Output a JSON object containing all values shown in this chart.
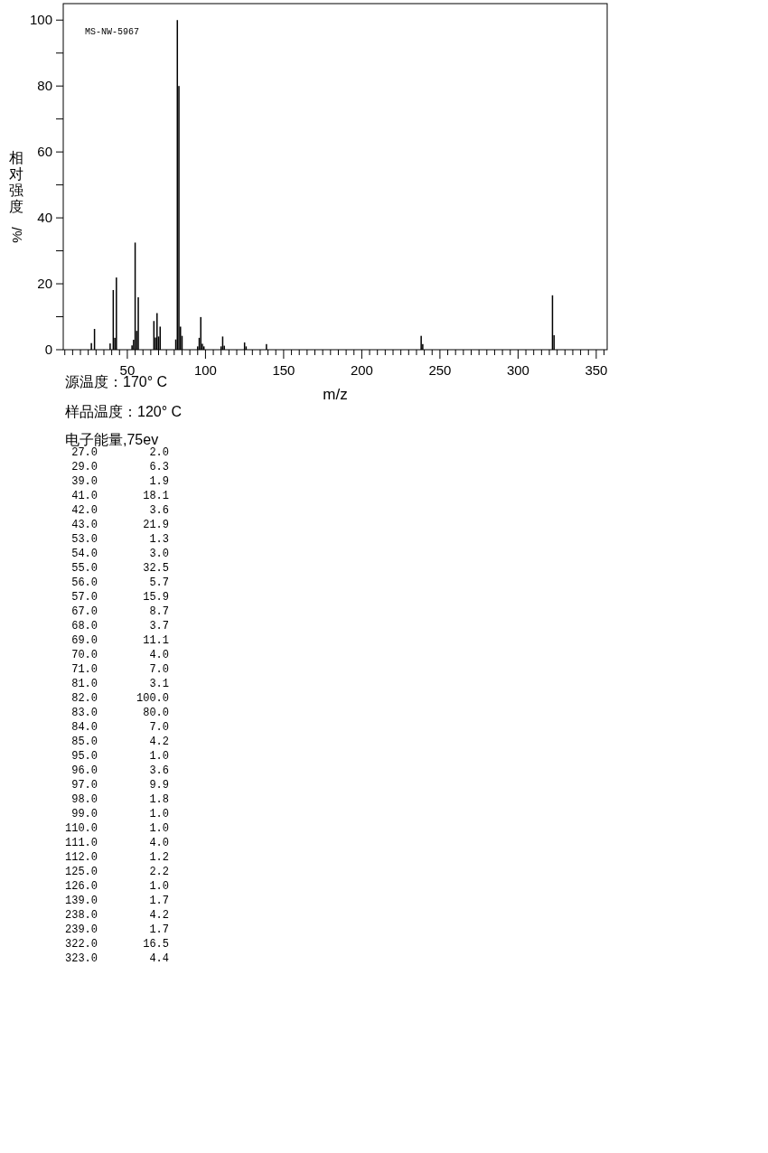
{
  "chart_data": [
    {
      "type": "bar",
      "title": "MS-NW-5967",
      "xlabel": "m/z",
      "ylabel": "相对强度%/",
      "annotations": [
        "源温度：170° C",
        "样品温度：120° C"
      ],
      "x": [
        27,
        29,
        39,
        41,
        42,
        43,
        53,
        54,
        55,
        56,
        57,
        67,
        68,
        69,
        70,
        71,
        81,
        82,
        83,
        84,
        85,
        95,
        96,
        97,
        98,
        99,
        110,
        111,
        112,
        125,
        126,
        139,
        238,
        239,
        322,
        323
      ],
      "values": [
        2.0,
        6.3,
        1.9,
        18.1,
        3.6,
        21.9,
        1.3,
        3.0,
        32.5,
        5.7,
        15.9,
        8.7,
        3.7,
        11.1,
        4.0,
        7.0,
        3.1,
        100.0,
        80.0,
        7.0,
        4.2,
        1.0,
        3.6,
        9.9,
        1.8,
        1.0,
        1.0,
        4.0,
        1.2,
        2.2,
        1.0,
        1.7,
        4.2,
        1.7,
        16.5,
        4.4
      ],
      "color": "#000000",
      "xlim": [
        9,
        357
      ],
      "xticks": [
        {
          "value": 10,
          "label": null
        },
        {
          "value": 15,
          "label": null
        },
        {
          "value": 20,
          "label": null
        },
        {
          "value": 25,
          "label": null
        },
        {
          "value": 30,
          "label": null
        },
        {
          "value": 35,
          "label": null
        },
        {
          "value": 40,
          "label": null
        },
        {
          "value": 45,
          "label": null
        },
        50,
        {
          "value": 55,
          "label": null
        },
        {
          "value": 60,
          "label": null
        },
        {
          "value": 65,
          "label": null
        },
        {
          "value": 70,
          "label": null
        },
        {
          "value": 75,
          "label": null
        },
        {
          "value": 80,
          "label": null
        },
        {
          "value": 85,
          "label": null
        },
        {
          "value": 90,
          "label": null
        },
        {
          "value": 95,
          "label": null
        },
        100,
        {
          "value": 105,
          "label": null
        },
        {
          "value": 110,
          "label": null
        },
        {
          "value": 115,
          "label": null
        },
        {
          "value": 120,
          "label": null
        },
        {
          "value": 125,
          "label": null
        },
        {
          "value": 130,
          "label": null
        },
        {
          "value": 135,
          "label": null
        },
        {
          "value": 140,
          "label": null
        },
        {
          "value": 145,
          "label": null
        },
        150,
        {
          "value": 155,
          "label": null
        },
        {
          "value": 160,
          "label": null
        },
        {
          "value": 165,
          "label": null
        },
        {
          "value": 170,
          "label": null
        },
        {
          "value": 175,
          "label": null
        },
        {
          "value": 180,
          "label": null
        },
        {
          "value": 185,
          "label": null
        },
        {
          "value": 190,
          "label": null
        },
        {
          "value": 195,
          "label": null
        },
        200,
        {
          "value": 205,
          "label": null
        },
        {
          "value": 210,
          "label": null
        },
        {
          "value": 215,
          "label": null
        },
        {
          "value": 220,
          "label": null
        },
        {
          "value": 225,
          "label": null
        },
        {
          "value": 230,
          "label": null
        },
        {
          "value": 235,
          "label": null
        },
        {
          "value": 240,
          "label": null
        },
        {
          "value": 245,
          "label": null
        },
        250,
        {
          "value": 255,
          "label": null
        },
        {
          "value": 260,
          "label": null
        },
        {
          "value": 265,
          "label": null
        },
        {
          "value": 270,
          "label": null
        },
        {
          "value": 275,
          "label": null
        },
        {
          "value": 280,
          "label": null
        },
        {
          "value": 285,
          "label": null
        },
        {
          "value": 290,
          "label": null
        },
        {
          "value": 295,
          "label": null
        },
        300,
        {
          "value": 305,
          "label": null
        },
        {
          "value": 310,
          "label": null
        },
        {
          "value": 315,
          "label": null
        },
        {
          "value": 320,
          "label": null
        },
        {
          "value": 325,
          "label": null
        },
        {
          "value": 330,
          "label": null
        },
        {
          "value": 335,
          "label": null
        },
        {
          "value": 340,
          "label": null
        },
        {
          "value": 345,
          "label": null
        },
        350,
        {
          "value": 355,
          "label": null
        }
      ],
      "ylim": [
        0,
        105
      ],
      "yticks": [
        0,
        {
          "value": 10,
          "label": null
        },
        20,
        {
          "value": 30,
          "label": null
        },
        40,
        {
          "value": 50,
          "label": null
        },
        60,
        {
          "value": 70,
          "label": null
        },
        80,
        {
          "value": 90,
          "label": null
        },
        100
      ]
    },
    {
      "type": "other",
      "title": "电子能量,75ev",
      "categories": [
        "27.0",
        "29.0",
        "39.0",
        "41.0",
        "42.0",
        "43.0",
        "53.0",
        "54.0",
        "55.0",
        "56.0",
        "57.0",
        "67.0",
        "68.0",
        "69.0",
        "70.0",
        "71.0",
        "81.0",
        "82.0",
        "83.0",
        "84.0",
        "85.0",
        "95.0",
        "96.0",
        "97.0",
        "98.0",
        "99.0",
        "110.0",
        "111.0",
        "112.0",
        "125.0",
        "126.0",
        "139.0",
        "238.0",
        "239.0",
        "322.0",
        "323.0"
      ],
      "values": [
        2.0,
        6.3,
        1.9,
        18.1,
        3.6,
        21.9,
        1.3,
        3.0,
        32.5,
        5.7,
        15.9,
        8.7,
        3.7,
        11.1,
        4.0,
        7.0,
        3.1,
        100.0,
        80.0,
        7.0,
        4.2,
        1.0,
        3.6,
        9.9,
        1.8,
        1.0,
        1.0,
        4.0,
        1.2,
        2.2,
        1.0,
        1.7,
        4.2,
        1.7,
        16.5,
        4.4
      ],
      "value_labels": [
        "2.0",
        "6.3",
        "1.9",
        "18.1",
        "3.6",
        "21.9",
        "1.3",
        "3.0",
        "32.5",
        "5.7",
        "15.9",
        "8.7",
        "3.7",
        "11.1",
        "4.0",
        "7.0",
        "3.1",
        "100.0",
        "80.0",
        "7.0",
        "4.2",
        "1.0",
        "3.6",
        "9.9",
        "1.8",
        "1.0",
        "1.0",
        "4.0",
        "1.2",
        "2.2",
        "1.0",
        "1.7",
        "4.2",
        "1.7",
        "16.5",
        "4.4"
      ]
    }
  ]
}
